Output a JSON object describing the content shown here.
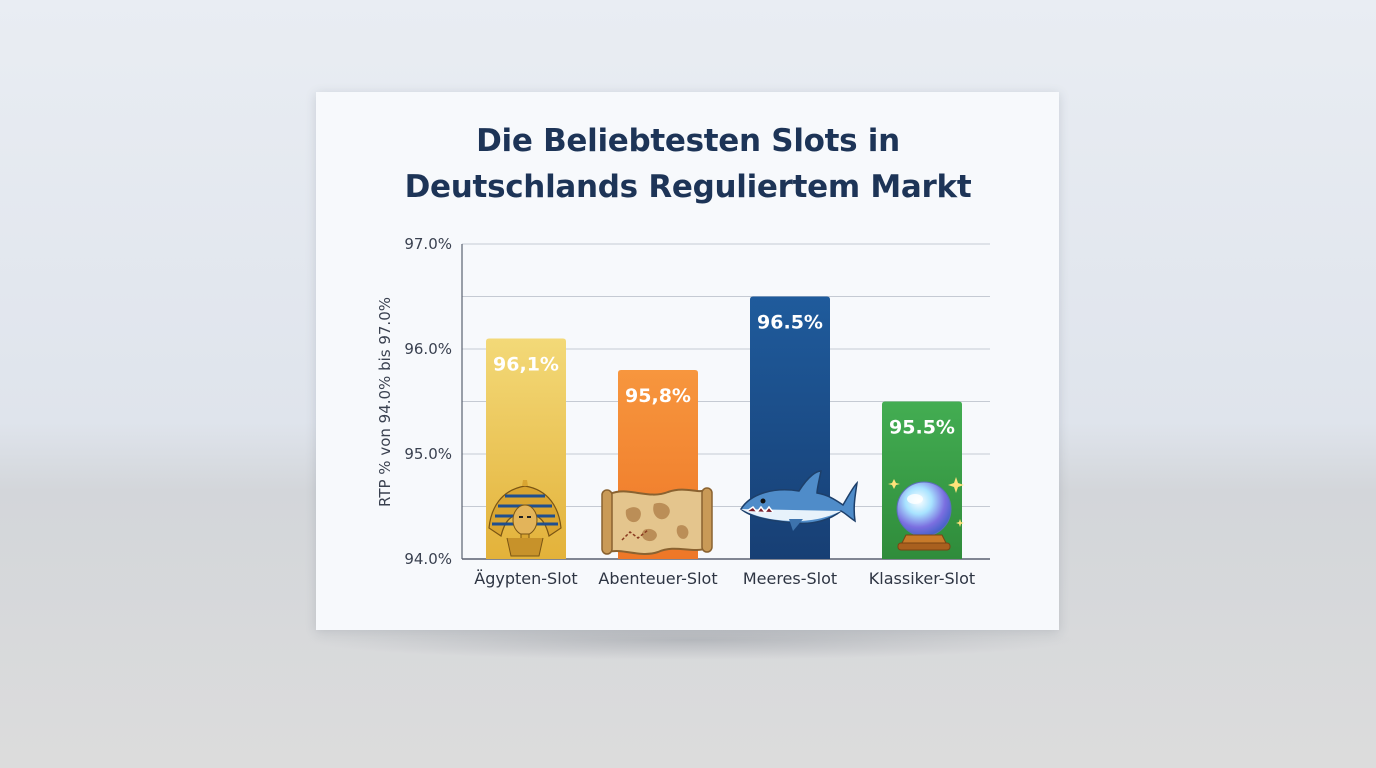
{
  "chart_data": {
    "type": "bar",
    "title_lines": [
      "Die Beliebtesten Slots in",
      "Deutschlands Reguliertem Markt"
    ],
    "ylabel": "RTP % von 94.0% bis 97.0%",
    "xlabel": "",
    "ylim": [
      94.0,
      97.0
    ],
    "yticks": [
      {
        "value": 94.0,
        "label": "94.0%"
      },
      {
        "value": 95.0,
        "label": "95.0%"
      },
      {
        "value": 96.0,
        "label": "96.0%"
      },
      {
        "value": 97.0,
        "label": "97.0%"
      }
    ],
    "grid": true,
    "categories": [
      "Ägypten-Slot",
      "Abenteuer-Slot",
      "Meeres-Slot",
      "Klassiker-Slot"
    ],
    "values": [
      96.1,
      95.8,
      96.5,
      95.5
    ],
    "data_labels": [
      "96,1%",
      "95,8%",
      "96.5%",
      "95.5%"
    ],
    "bar_colors": [
      "#efc24e",
      "#f2842f",
      "#1c4f8a",
      "#39a045"
    ],
    "icons": [
      "pharaoh-icon",
      "treasure-map-icon",
      "shark-icon",
      "crystal-ball-icon"
    ]
  }
}
